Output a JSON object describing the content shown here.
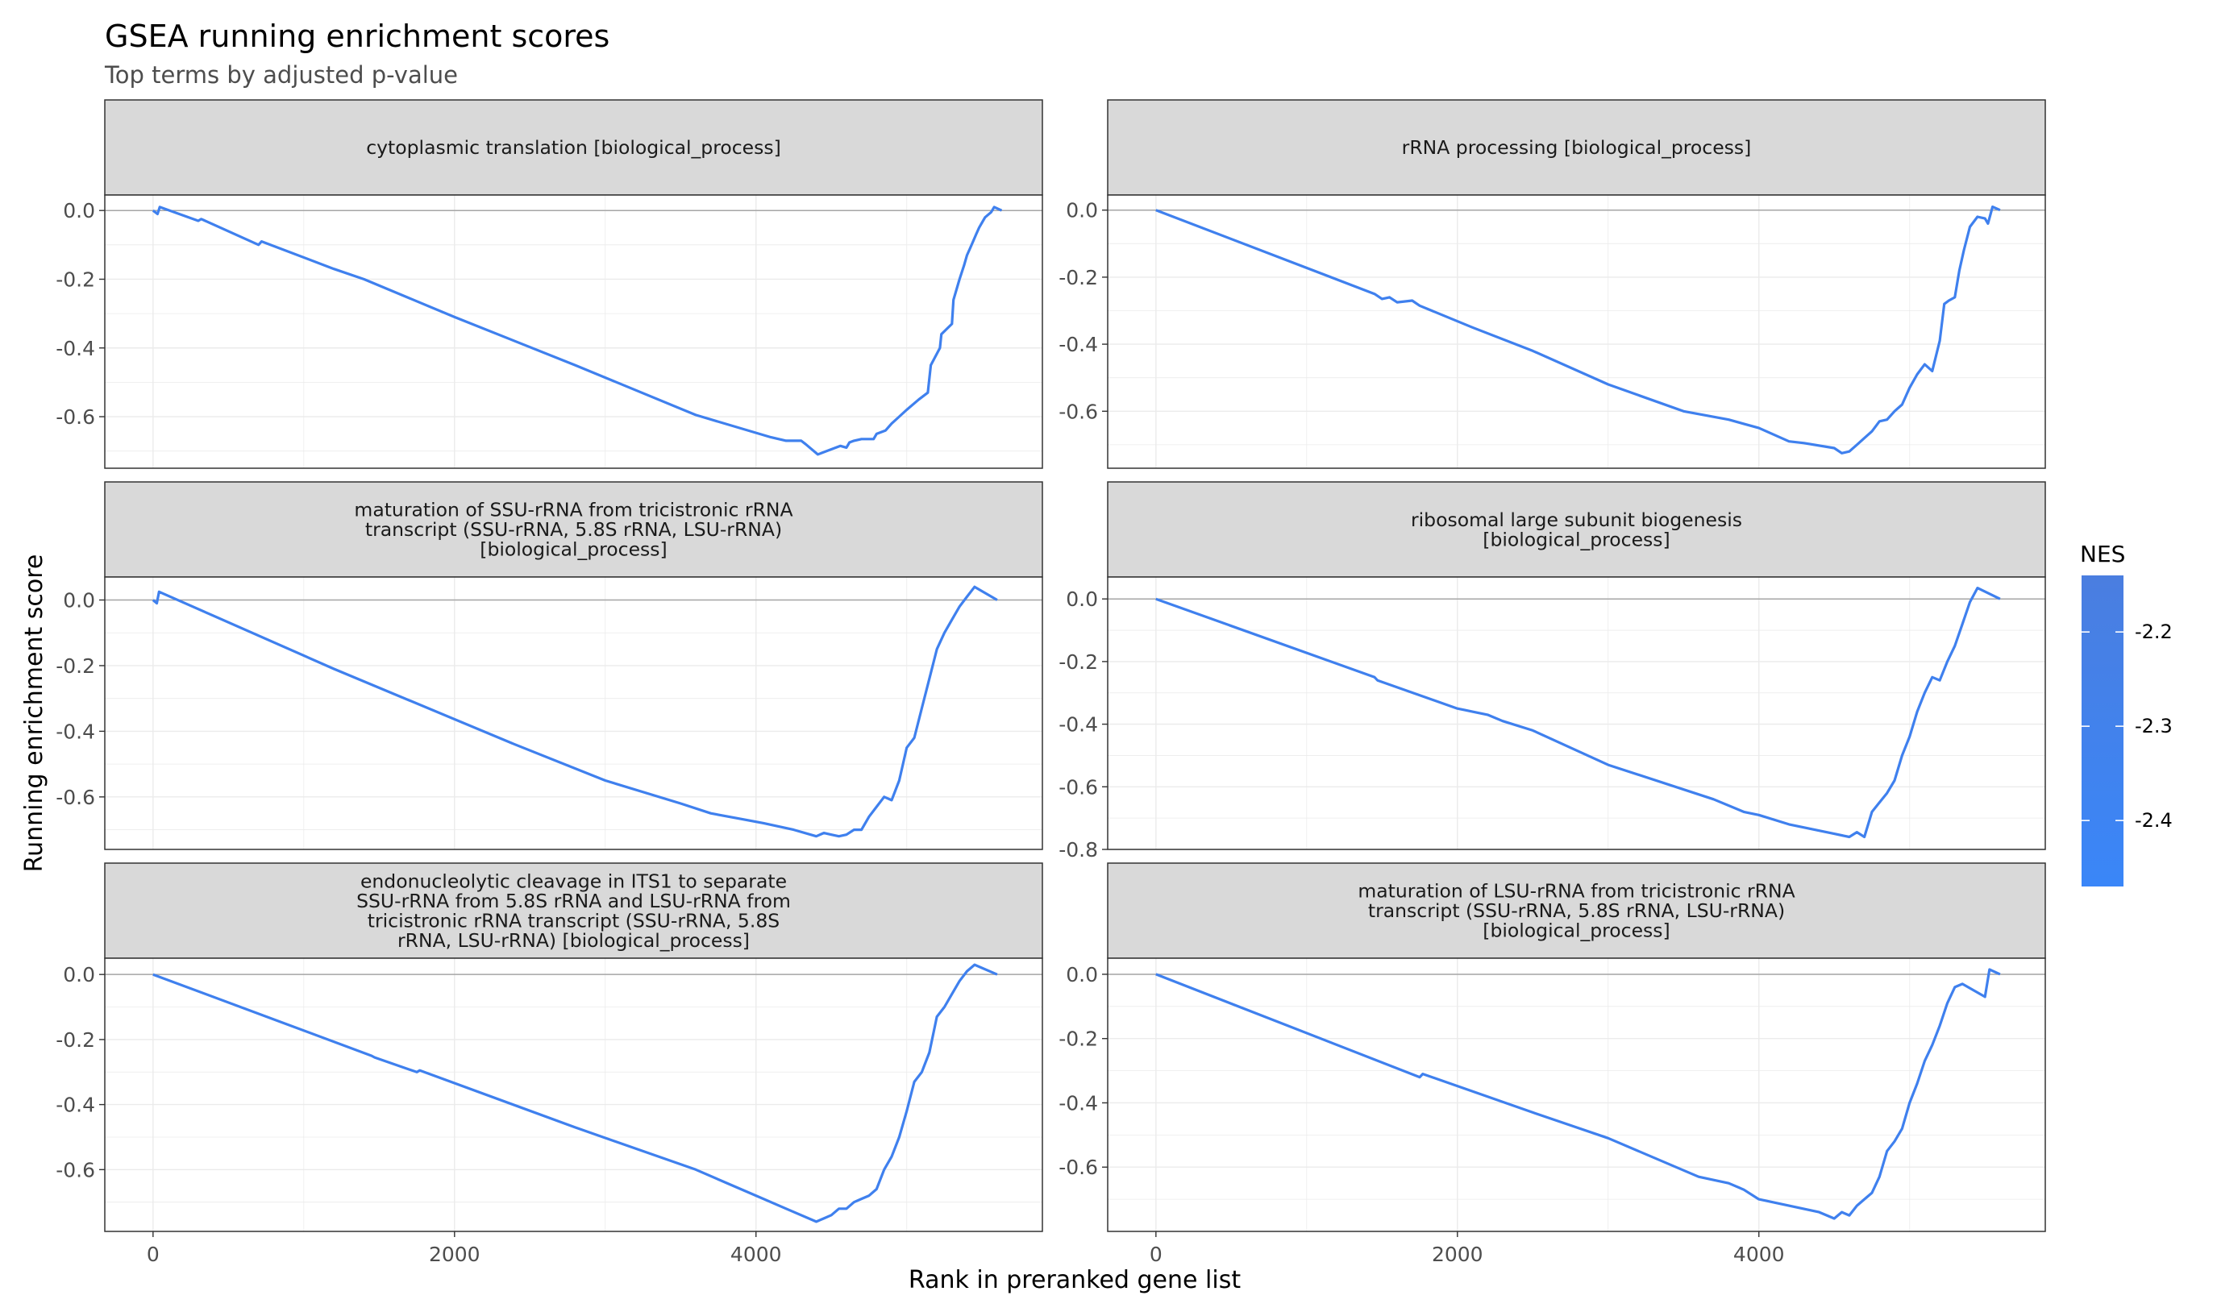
{
  "chart_data": {
    "type": "line",
    "title": "GSEA running enrichment scores",
    "subtitle": "Top terms by adjusted p-value",
    "xlabel": "Rank in preranked gene list",
    "ylabel": "Running enrichment score",
    "xlim": [
      -320,
      5900
    ],
    "x_ticks": [
      0,
      2000,
      4000
    ],
    "x_tick_labels": [
      "0",
      "2000",
      "4000"
    ],
    "grid": true,
    "legend": {
      "title": "NES",
      "placement": "right",
      "type": "colorbar",
      "range": [
        -2.47,
        -2.14
      ],
      "ticks": [
        -2.2,
        -2.3,
        -2.4
      ],
      "tick_labels": [
        "-2.2",
        "-2.3",
        "-2.4"
      ],
      "color_low": "#3a86f8",
      "color_high": "#4a7ee0"
    },
    "line_color": "#3f80ee",
    "panels": [
      {
        "strip": [
          "cytoplasmic translation [biological_process]"
        ],
        "nes": -2.2,
        "ylim": [
          -0.75,
          0.045
        ],
        "y_ticks": [
          0,
          -0.2,
          -0.4,
          -0.6
        ],
        "y_tick_labels": [
          "0.0",
          "-0.2",
          "-0.4",
          "-0.6"
        ],
        "series": {
          "x": [
            0,
            30,
            45,
            300,
            320,
            700,
            720,
            1200,
            1400,
            2000,
            2800,
            3600,
            4100,
            4200,
            4300,
            4330,
            4410,
            4440,
            4500,
            4560,
            4600,
            4620,
            4650,
            4700,
            4780,
            4800,
            4860,
            4900,
            4950,
            5000,
            5080,
            5140,
            5160,
            5220,
            5230,
            5300,
            5310,
            5350,
            5380,
            5400,
            5420,
            5440,
            5460,
            5480,
            5500,
            5520,
            5560,
            5580,
            5630
          ],
          "y": [
            0,
            -0.01,
            0.01,
            -0.03,
            -0.025,
            -0.1,
            -0.09,
            -0.17,
            -0.2,
            -0.31,
            -0.45,
            -0.595,
            -0.66,
            -0.67,
            -0.67,
            -0.68,
            -0.71,
            -0.705,
            -0.695,
            -0.685,
            -0.69,
            -0.675,
            -0.67,
            -0.665,
            -0.665,
            -0.65,
            -0.64,
            -0.62,
            -0.6,
            -0.58,
            -0.55,
            -0.53,
            -0.45,
            -0.4,
            -0.36,
            -0.33,
            -0.26,
            -0.2,
            -0.16,
            -0.13,
            -0.11,
            -0.09,
            -0.07,
            -0.05,
            -0.035,
            -0.02,
            -0.005,
            0.01,
            0.0
          ]
        }
      },
      {
        "strip": [
          "rRNA processing [biological_process]"
        ],
        "nes": -2.4,
        "ylim": [
          -0.77,
          0.045
        ],
        "y_ticks": [
          0,
          -0.2,
          -0.4,
          -0.6
        ],
        "y_tick_labels": [
          "0.0",
          "-0.2",
          "-0.4",
          "-0.6"
        ],
        "series": {
          "x": [
            0,
            1450,
            1500,
            1550,
            1600,
            1700,
            1750,
            2100,
            2500,
            3000,
            3500,
            3800,
            4000,
            4200,
            4300,
            4500,
            4550,
            4600,
            4650,
            4700,
            4750,
            4800,
            4850,
            4900,
            4950,
            5000,
            5050,
            5100,
            5150,
            5200,
            5230,
            5260,
            5300,
            5330,
            5360,
            5400,
            5450,
            5500,
            5520,
            5550,
            5600
          ],
          "y": [
            0,
            -0.25,
            -0.265,
            -0.26,
            -0.275,
            -0.27,
            -0.285,
            -0.35,
            -0.42,
            -0.52,
            -0.6,
            -0.625,
            -0.65,
            -0.69,
            -0.695,
            -0.71,
            -0.725,
            -0.72,
            -0.7,
            -0.68,
            -0.66,
            -0.63,
            -0.625,
            -0.6,
            -0.58,
            -0.53,
            -0.49,
            -0.46,
            -0.48,
            -0.39,
            -0.28,
            -0.27,
            -0.26,
            -0.18,
            -0.12,
            -0.05,
            -0.02,
            -0.025,
            -0.04,
            0.01,
            0.0
          ]
        }
      },
      {
        "strip": [
          "maturation of SSU-rRNA from tricistronic rRNA",
          "transcript (SSU-rRNA, 5.8S rRNA, LSU-rRNA)",
          "[biological_process]"
        ],
        "nes": -2.3,
        "ylim": [
          -0.76,
          0.07
        ],
        "y_ticks": [
          0,
          -0.2,
          -0.4,
          -0.6
        ],
        "y_tick_labels": [
          "0.0",
          "-0.2",
          "-0.4",
          "-0.6"
        ],
        "series": {
          "x": [
            0,
            25,
            40,
            1200,
            2400,
            3000,
            3500,
            3700,
            4050,
            4250,
            4400,
            4450,
            4500,
            4550,
            4600,
            4650,
            4700,
            4750,
            4800,
            4850,
            4900,
            4950,
            5000,
            5050,
            5100,
            5150,
            5200,
            5250,
            5300,
            5350,
            5400,
            5450,
            5600
          ],
          "y": [
            0,
            -0.01,
            0.025,
            -0.21,
            -0.44,
            -0.55,
            -0.62,
            -0.65,
            -0.68,
            -0.7,
            -0.72,
            -0.71,
            -0.715,
            -0.72,
            -0.715,
            -0.7,
            -0.7,
            -0.66,
            -0.63,
            -0.6,
            -0.61,
            -0.55,
            -0.45,
            -0.42,
            -0.33,
            -0.24,
            -0.15,
            -0.1,
            -0.06,
            -0.02,
            0.01,
            0.04,
            0.0
          ]
        }
      },
      {
        "strip": [
          "ribosomal large subunit biogenesis",
          "[biological_process]"
        ],
        "nes": -2.4,
        "ylim": [
          -0.8,
          0.07
        ],
        "y_ticks": [
          0,
          -0.2,
          -0.4,
          -0.6,
          -0.8
        ],
        "y_tick_labels": [
          "0.0",
          "-0.2",
          "-0.4",
          "-0.6",
          "-0.8"
        ],
        "series": {
          "x": [
            0,
            1450,
            1470,
            2000,
            2050,
            2100,
            2200,
            2300,
            2500,
            3000,
            3700,
            3900,
            4000,
            4200,
            4300,
            4500,
            4600,
            4650,
            4700,
            4750,
            4800,
            4850,
            4900,
            4950,
            5000,
            5050,
            5100,
            5150,
            5200,
            5250,
            5300,
            5350,
            5400,
            5450,
            5600
          ],
          "y": [
            0,
            -0.25,
            -0.26,
            -0.35,
            -0.355,
            -0.36,
            -0.37,
            -0.39,
            -0.42,
            -0.53,
            -0.64,
            -0.68,
            -0.69,
            -0.72,
            -0.73,
            -0.75,
            -0.76,
            -0.745,
            -0.76,
            -0.68,
            -0.65,
            -0.62,
            -0.58,
            -0.5,
            -0.44,
            -0.36,
            -0.3,
            -0.25,
            -0.26,
            -0.2,
            -0.15,
            -0.08,
            -0.01,
            0.035,
            0.0
          ]
        }
      },
      {
        "strip": [
          "endonucleolytic cleavage in ITS1 to separate",
          "SSU-rRNA from 5.8S rRNA and LSU-rRNA from",
          "tricistronic rRNA transcript (SSU-rRNA, 5.8S",
          "rRNA, LSU-rRNA) [biological_process]"
        ],
        "nes": -2.3,
        "ylim": [
          -0.79,
          0.05
        ],
        "y_ticks": [
          0,
          -0.2,
          -0.4,
          -0.6
        ],
        "y_tick_labels": [
          "0.0",
          "-0.2",
          "-0.4",
          "-0.6"
        ],
        "series": {
          "x": [
            0,
            1450,
            1470,
            1750,
            1770,
            2800,
            3600,
            3800,
            4000,
            4200,
            4400,
            4450,
            4500,
            4550,
            4600,
            4650,
            4700,
            4750,
            4800,
            4850,
            4900,
            4950,
            5000,
            5050,
            5100,
            5150,
            5200,
            5250,
            5300,
            5350,
            5400,
            5450,
            5600
          ],
          "y": [
            0,
            -0.25,
            -0.255,
            -0.3,
            -0.295,
            -0.47,
            -0.6,
            -0.64,
            -0.68,
            -0.72,
            -0.76,
            -0.75,
            -0.74,
            -0.72,
            -0.72,
            -0.7,
            -0.69,
            -0.68,
            -0.66,
            -0.6,
            -0.56,
            -0.5,
            -0.42,
            -0.33,
            -0.3,
            -0.24,
            -0.13,
            -0.1,
            -0.06,
            -0.02,
            0.01,
            0.03,
            0.0
          ]
        }
      },
      {
        "strip": [
          "maturation of LSU-rRNA from tricistronic rRNA",
          "transcript (SSU-rRNA, 5.8S rRNA, LSU-rRNA)",
          "[biological_process]"
        ],
        "nes": -2.4,
        "ylim": [
          -0.8,
          0.05
        ],
        "y_ticks": [
          0,
          -0.2,
          -0.4,
          -0.6
        ],
        "y_tick_labels": [
          "0.0",
          "-0.2",
          "-0.4",
          "-0.6"
        ],
        "series": {
          "x": [
            0,
            1750,
            1770,
            2500,
            3000,
            3600,
            3700,
            3800,
            3900,
            4000,
            4200,
            4300,
            4400,
            4500,
            4550,
            4600,
            4650,
            4700,
            4750,
            4800,
            4850,
            4900,
            4950,
            5000,
            5050,
            5100,
            5150,
            5200,
            5250,
            5300,
            5350,
            5500,
            5530,
            5600
          ],
          "y": [
            0,
            -0.32,
            -0.31,
            -0.43,
            -0.51,
            -0.63,
            -0.64,
            -0.65,
            -0.67,
            -0.7,
            -0.72,
            -0.73,
            -0.74,
            -0.76,
            -0.74,
            -0.75,
            -0.72,
            -0.7,
            -0.68,
            -0.63,
            -0.55,
            -0.52,
            -0.48,
            -0.4,
            -0.34,
            -0.27,
            -0.22,
            -0.16,
            -0.09,
            -0.04,
            -0.03,
            -0.07,
            0.015,
            0.0
          ]
        }
      }
    ]
  }
}
